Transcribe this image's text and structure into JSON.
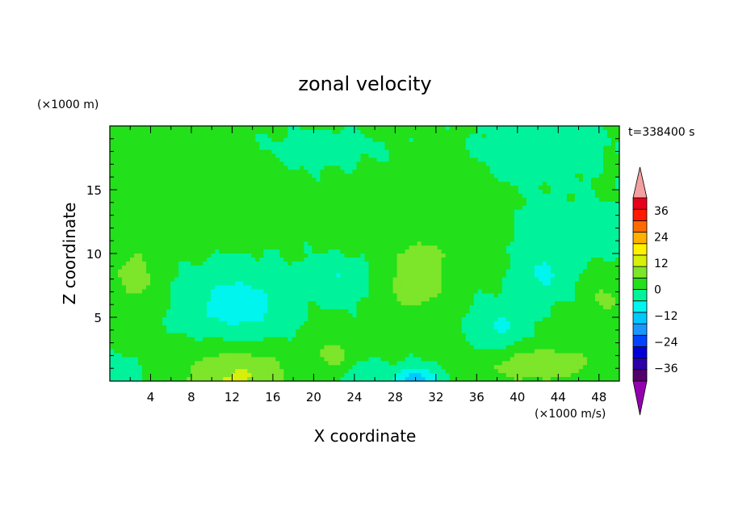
{
  "chart_data": {
    "type": "heatmap",
    "title": "zonal velocity",
    "xlabel": "X coordinate",
    "ylabel": "Z coordinate",
    "x_unit_label": "(×1000 m/s)",
    "y_unit_label": "(×1000 m)",
    "time_label": "t=338400 s",
    "x_range": [
      0,
      50
    ],
    "y_range": [
      0,
      20
    ],
    "x_ticks": [
      4,
      8,
      12,
      16,
      20,
      24,
      28,
      32,
      36,
      40,
      44,
      48
    ],
    "y_ticks": [
      5,
      10,
      15
    ],
    "colorbar": {
      "levels": [
        -42,
        -36,
        -30,
        -24,
        -18,
        -12,
        -6,
        0,
        6,
        12,
        18,
        24,
        30,
        36,
        42
      ],
      "tick_labels": [
        -36,
        -24,
        -12,
        0,
        12,
        24,
        36
      ],
      "colors": [
        "#54006c",
        "#2b00a8",
        "#0000d6",
        "#0044ff",
        "#1a96ff",
        "#00c8ff",
        "#00f5ee",
        "#00f39a",
        "#22e01a",
        "#7de52a",
        "#d6f00a",
        "#fff200",
        "#ffb000",
        "#ff6a00",
        "#ff1a00",
        "#e8001a"
      ],
      "under_color": "#9400b0",
      "over_color": "#f4a0a0"
    },
    "background_value": 1,
    "features": [
      {
        "x": 12.5,
        "z": 0.3,
        "sx": 5.5,
        "sz": 2.4,
        "amp": 12
      },
      {
        "x": 30,
        "z": 8.2,
        "sx": 3.1,
        "sz": 3.0,
        "amp": 9
      },
      {
        "x": 2.5,
        "z": 8.2,
        "sx": 2.2,
        "sz": 1.9,
        "amp": 8.5
      },
      {
        "x": 42,
        "z": 1.3,
        "sx": 5.5,
        "sz": 1.4,
        "amp": 10
      },
      {
        "x": 22,
        "z": 2.1,
        "sx": 2.2,
        "sz": 1.3,
        "amp": 6.5
      },
      {
        "x": 12.5,
        "z": 6.0,
        "sx": 4.8,
        "sz": 2.9,
        "amp": -10
      },
      {
        "x": 30,
        "z": 0.1,
        "sx": 2.3,
        "sz": 1.0,
        "amp": -16
      },
      {
        "x": 22.5,
        "z": 8.0,
        "sx": 2.8,
        "sz": 1.6,
        "amp": -7
      },
      {
        "x": 42.5,
        "z": 8.3,
        "sx": 2.6,
        "sz": 2.0,
        "amp": -7.5
      },
      {
        "x": 38,
        "z": 4.2,
        "sx": 2.6,
        "sz": 2.0,
        "amp": -8
      },
      {
        "x": 46,
        "z": 11.8,
        "sx": 5.0,
        "sz": 2.0,
        "amp": -6
      },
      {
        "x": 0.5,
        "z": 0.6,
        "sx": 2.5,
        "sz": 1.2,
        "amp": -6
      },
      {
        "x": 25,
        "z": 0.6,
        "sx": 2.0,
        "sz": 1.0,
        "amp": -6
      },
      {
        "x": 42,
        "z": 18.0,
        "sx": 6.0,
        "sz": 2.5,
        "amp": -4.5
      },
      {
        "x": 21,
        "z": 18.2,
        "sx": 5.0,
        "sz": 1.4,
        "amp": -3.5
      },
      {
        "x": 6,
        "z": 12.0,
        "sx": 6.0,
        "sz": 1.8,
        "amp": 4
      },
      {
        "x": 7,
        "z": 17.0,
        "sx": 4.0,
        "sz": 1.6,
        "amp": 4
      },
      {
        "x": 34,
        "z": 13.5,
        "sx": 3.0,
        "sz": 3.5,
        "amp": 4
      },
      {
        "x": 48.5,
        "z": 6.5,
        "sx": 1.8,
        "sz": 1.8,
        "amp": 6
      }
    ]
  }
}
